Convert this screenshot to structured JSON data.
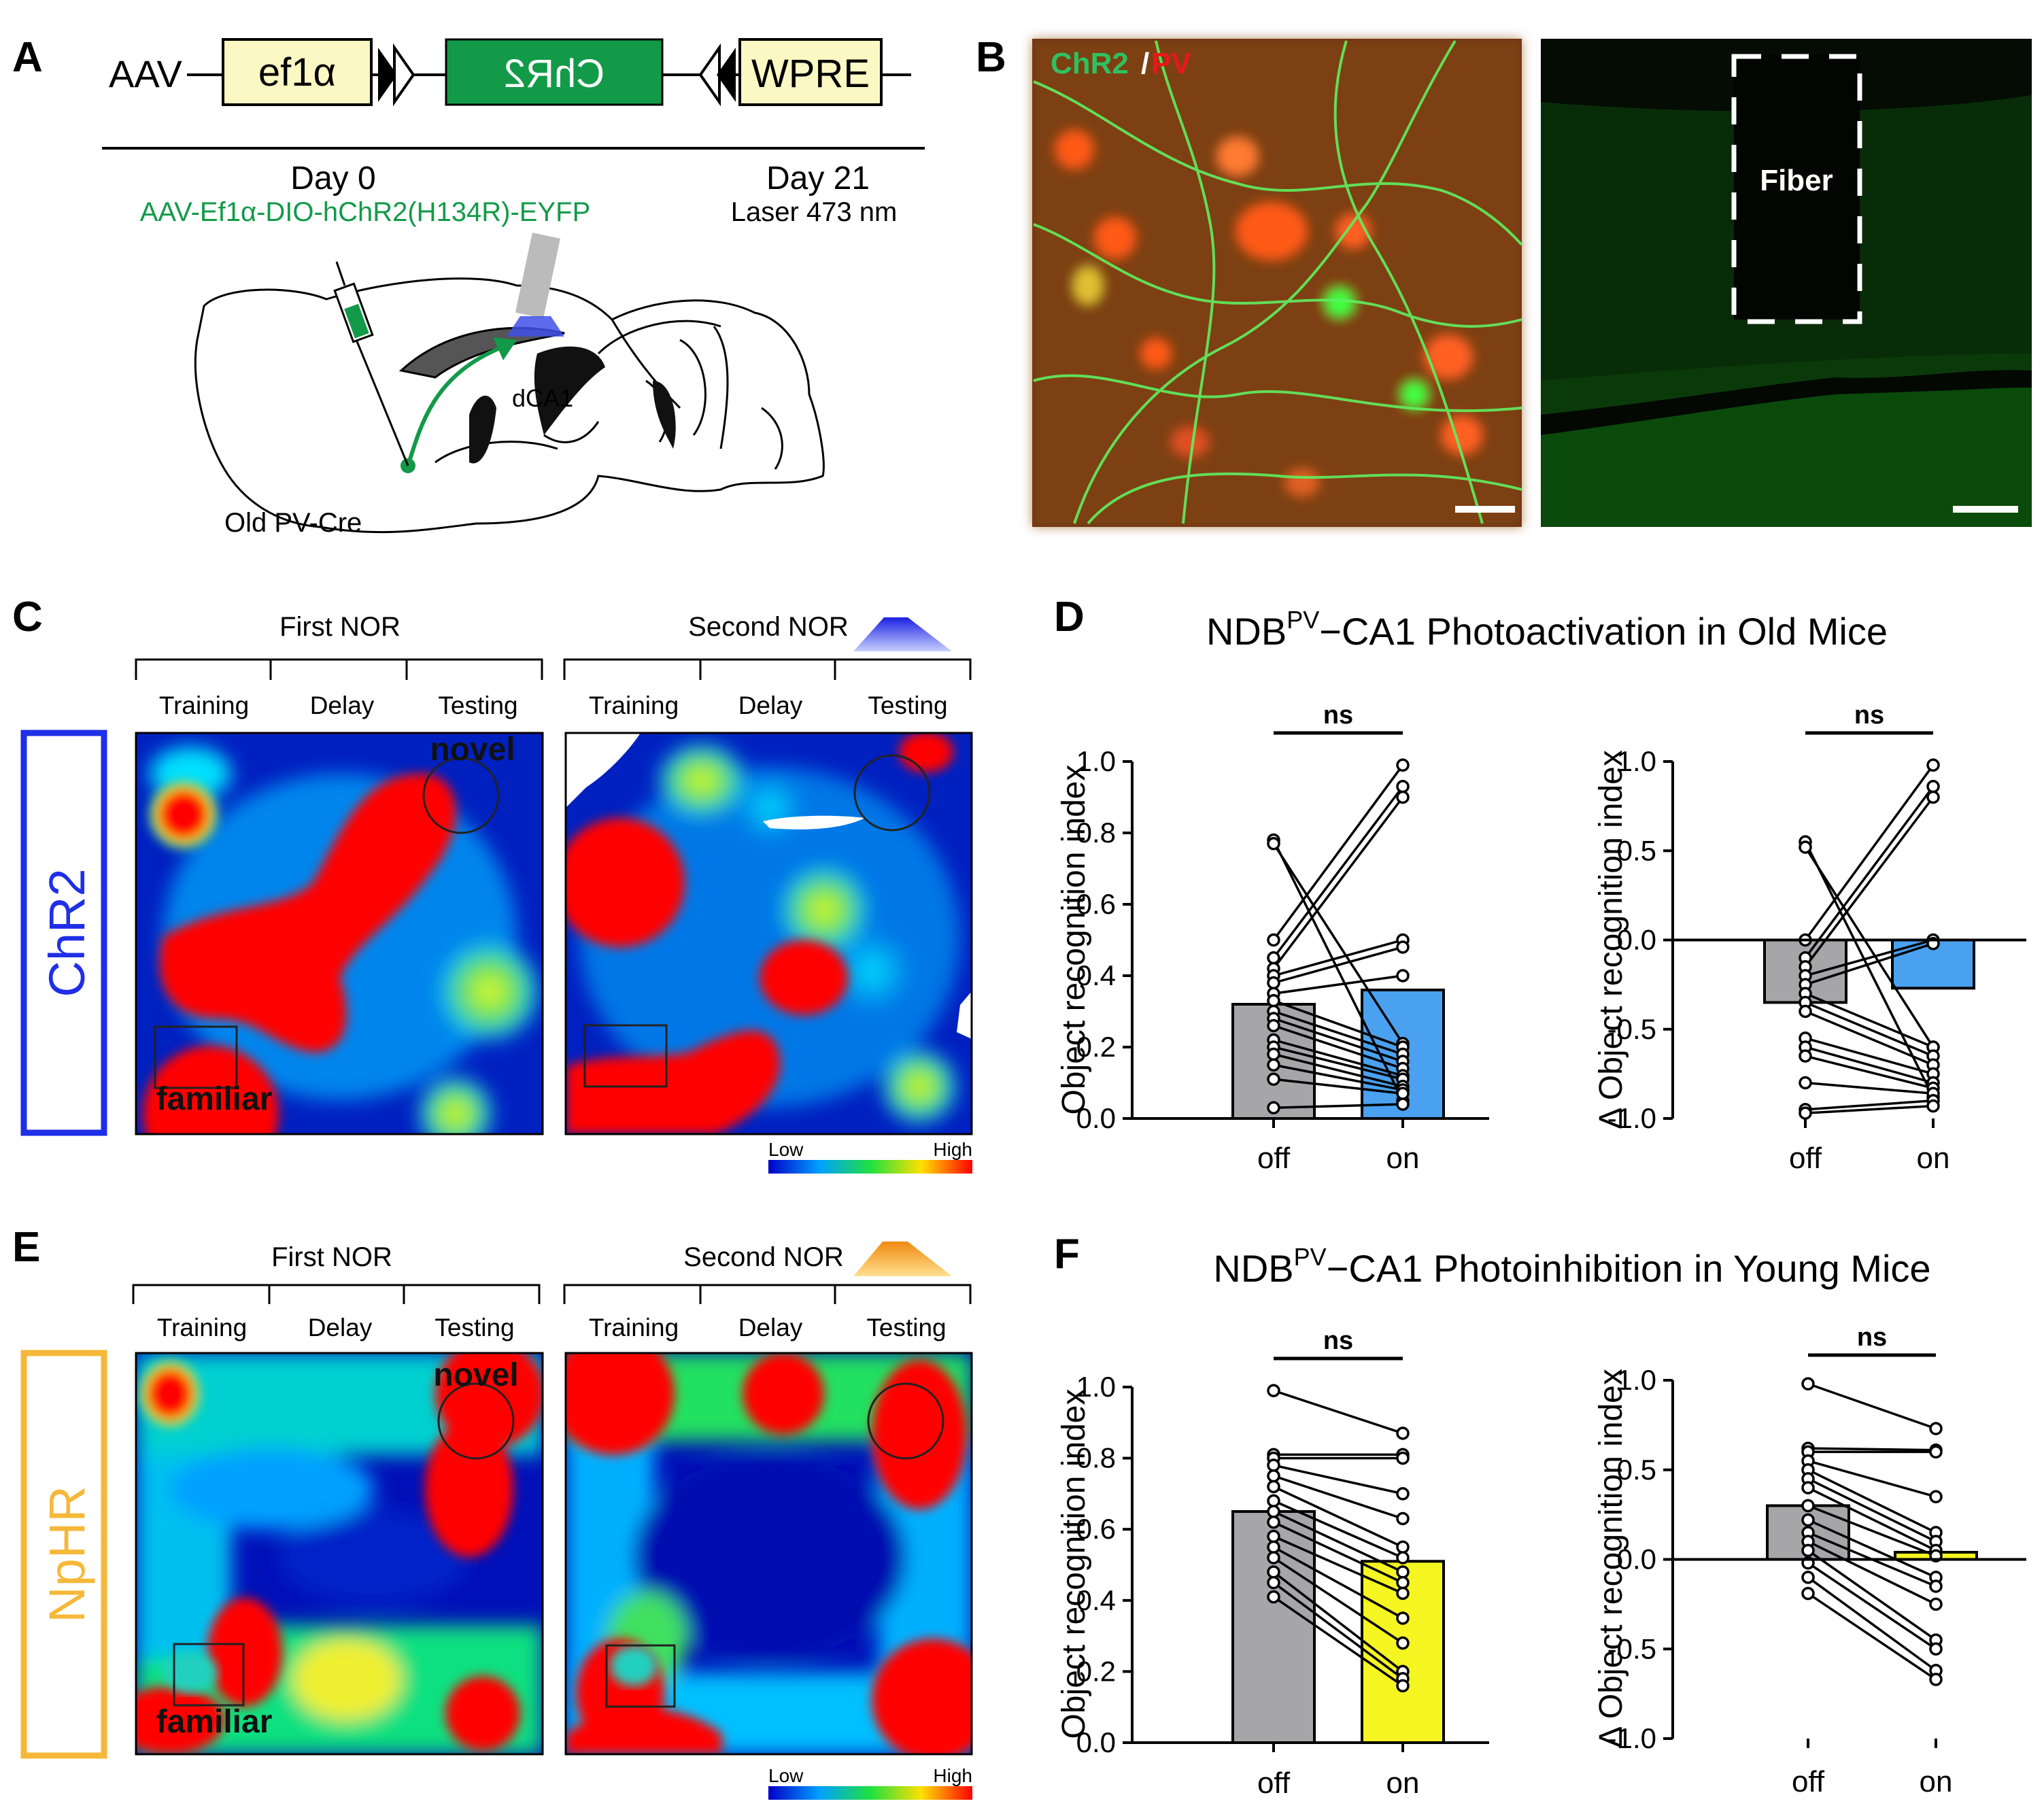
{
  "panels": {
    "A": "A",
    "B": "B",
    "C": "C",
    "D": "D",
    "E": "E",
    "F": "F"
  },
  "construct": {
    "aav": "AAV",
    "promoter": "ef1α",
    "gene": "ChR2",
    "wpre": "WPRE"
  },
  "timeline": {
    "day0": "Day 0",
    "day21": "Day 21",
    "virus": "AAV-Ef1α-DIO-hChR2(H134R)-EYFP",
    "laser": "Laser 473 nm",
    "region": "dCA1",
    "mouse": "Old PV-Cre"
  },
  "histology": {
    "label_green": "ChR2",
    "label_sep": "/",
    "label_red": "PV",
    "fiber": "Fiber"
  },
  "heatmaps": {
    "first_nor": "First NOR",
    "second_nor": "Second NOR",
    "phases": [
      "Training",
      "Delay",
      "Testing"
    ],
    "novel": "novel",
    "familiar": "familiar",
    "chr2_row": "ChR2",
    "nphr_row": "NpHR",
    "low": "Low",
    "high": "High"
  },
  "colors": {
    "chr2": "#1f2fe8",
    "nphr": "#f6b83a",
    "off_bar": "#a6a6a8",
    "on_d": "#4aa1ef",
    "on_f": "#f5f522",
    "green": "#129a48"
  },
  "titles": {
    "D": {
      "pre": "NDB",
      "sup": "PV",
      "post": "−CA1 Photoactivation in Old Mice"
    },
    "F": {
      "pre": "NDB",
      "sup": "PV",
      "post": "−CA1 Photoinhibition in Young Mice"
    }
  },
  "chart_data": [
    {
      "id": "D-left",
      "type": "bar",
      "title": "NDBPV−CA1 Photoactivation in Old Mice",
      "ylabel": "Object recognition index",
      "categories": [
        "off",
        "on"
      ],
      "values": [
        0.32,
        0.36
      ],
      "ylim": [
        0,
        1.0
      ],
      "yticks": [
        "0.0",
        "0.2",
        "0.4",
        "0.6",
        "0.8",
        "1.0"
      ],
      "significance": "ns",
      "pairs": [
        [
          0.78,
          0.05
        ],
        [
          0.77,
          0.21
        ],
        [
          0.5,
          0.99
        ],
        [
          0.45,
          0.93
        ],
        [
          0.42,
          0.9
        ],
        [
          0.4,
          0.5
        ],
        [
          0.38,
          0.48
        ],
        [
          0.35,
          0.4
        ],
        [
          0.33,
          0.2
        ],
        [
          0.3,
          0.18
        ],
        [
          0.28,
          0.16
        ],
        [
          0.26,
          0.14
        ],
        [
          0.22,
          0.12
        ],
        [
          0.2,
          0.11
        ],
        [
          0.18,
          0.09
        ],
        [
          0.15,
          0.08
        ],
        [
          0.11,
          0.07
        ],
        [
          0.03,
          0.04
        ]
      ]
    },
    {
      "id": "D-right",
      "type": "bar",
      "ylabel": "Δ Object recognition index",
      "categories": [
        "off",
        "on"
      ],
      "values": [
        -0.35,
        -0.27
      ],
      "ylim": [
        -1.0,
        1.0
      ],
      "yticks": [
        "-1.0",
        "-0.5",
        "0.0",
        "0.5",
        "1.0"
      ],
      "significance": "ns",
      "pairs": [
        [
          0.55,
          -0.88
        ],
        [
          0.52,
          -0.6
        ],
        [
          0.0,
          0.98
        ],
        [
          -0.1,
          0.86
        ],
        [
          -0.15,
          0.8
        ],
        [
          -0.2,
          0.0
        ],
        [
          -0.25,
          -0.02
        ],
        [
          -0.3,
          -0.6
        ],
        [
          -0.35,
          -0.65
        ],
        [
          -0.4,
          -0.7
        ],
        [
          -0.55,
          -0.75
        ],
        [
          -0.6,
          -0.8
        ],
        [
          -0.65,
          -0.83
        ],
        [
          -0.8,
          -0.86
        ],
        [
          -0.95,
          -0.9
        ],
        [
          -0.97,
          -0.93
        ]
      ]
    },
    {
      "id": "F-left",
      "type": "bar",
      "title": "NDBPV−CA1 Photoinhibition in Young Mice",
      "ylabel": "Object recognition index",
      "categories": [
        "off",
        "on"
      ],
      "values": [
        0.65,
        0.51
      ],
      "ylim": [
        0,
        1.0
      ],
      "yticks": [
        "0.0",
        "0.2",
        "0.4",
        "0.6",
        "0.8",
        "1.0"
      ],
      "significance": "ns",
      "pairs": [
        [
          0.99,
          0.87
        ],
        [
          0.81,
          0.81
        ],
        [
          0.8,
          0.8
        ],
        [
          0.78,
          0.7
        ],
        [
          0.75,
          0.63
        ],
        [
          0.72,
          0.55
        ],
        [
          0.68,
          0.52
        ],
        [
          0.65,
          0.48
        ],
        [
          0.62,
          0.45
        ],
        [
          0.58,
          0.42
        ],
        [
          0.55,
          0.35
        ],
        [
          0.52,
          0.28
        ],
        [
          0.48,
          0.2
        ],
        [
          0.45,
          0.18
        ],
        [
          0.41,
          0.16
        ]
      ]
    },
    {
      "id": "F-right",
      "type": "bar",
      "ylabel": "Δ Object recognition index",
      "categories": [
        "off",
        "on"
      ],
      "values": [
        0.3,
        0.04
      ],
      "ylim": [
        -1.0,
        1.0
      ],
      "yticks": [
        "-1.0",
        "-0.5",
        "0.0",
        "0.5",
        "1.0"
      ],
      "significance": "ns",
      "pairs": [
        [
          0.98,
          0.73
        ],
        [
          0.62,
          0.61
        ],
        [
          0.6,
          0.6
        ],
        [
          0.55,
          0.35
        ],
        [
          0.5,
          0.15
        ],
        [
          0.45,
          0.1
        ],
        [
          0.4,
          0.05
        ],
        [
          0.3,
          0.02
        ],
        [
          0.22,
          -0.1
        ],
        [
          0.15,
          -0.15
        ],
        [
          0.1,
          -0.25
        ],
        [
          0.05,
          -0.45
        ],
        [
          -0.02,
          -0.5
        ],
        [
          -0.1,
          -0.62
        ],
        [
          -0.19,
          -0.67
        ]
      ]
    }
  ]
}
